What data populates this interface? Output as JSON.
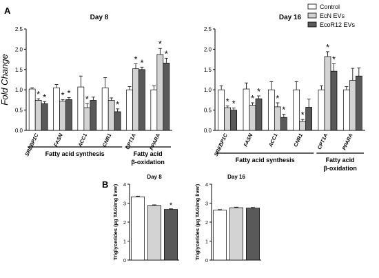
{
  "panel_labels": [
    "A",
    "B"
  ],
  "legend": {
    "entries": [
      {
        "name": "Control",
        "color": "#ffffff"
      },
      {
        "name": "EcN EVs",
        "color": "#d3d3d3"
      },
      {
        "name": "EcoR12 EVs",
        "color": "#595959"
      }
    ]
  },
  "chart_data": [
    {
      "type": "bar",
      "panel": "A",
      "title": "Day 8",
      "ylabel": "Fold Change",
      "ylim": [
        0,
        2.5
      ],
      "yticks": [
        "0.0",
        "0.5",
        "1.0",
        "1.5",
        "2.0",
        "2.5"
      ],
      "categories": [
        "SREBP1C",
        "FASN",
        "ACC1",
        "CNR1",
        "CPT1A",
        "PPARA"
      ],
      "series": [
        {
          "name": "Control",
          "values": [
            1.02,
            1.05,
            1.07,
            1.05,
            1.0,
            1.0
          ],
          "errors": [
            0.03,
            0.08,
            0.27,
            0.25,
            0.08,
            0.1
          ]
        },
        {
          "name": "EcN EVs",
          "values": [
            0.74,
            0.72,
            0.56,
            0.74,
            1.52,
            1.87
          ],
          "errors": [
            0.04,
            0.04,
            0.1,
            0.06,
            0.12,
            0.15
          ]
        },
        {
          "name": "EcoR12 EVs",
          "values": [
            0.66,
            0.76,
            0.74,
            0.46,
            1.5,
            1.66
          ],
          "errors": [
            0.05,
            0.05,
            0.08,
            0.07,
            0.06,
            0.12
          ]
        }
      ],
      "significance": [
        {
          "category": 0,
          "series": 1
        },
        {
          "category": 0,
          "series": 2
        },
        {
          "category": 1,
          "series": 1
        },
        {
          "category": 1,
          "series": 2
        },
        {
          "category": 2,
          "series": 1
        },
        {
          "category": 3,
          "series": 2
        },
        {
          "category": 4,
          "series": 1
        },
        {
          "category": 4,
          "series": 2
        },
        {
          "category": 5,
          "series": 1
        },
        {
          "category": 5,
          "series": 2
        }
      ],
      "significance_mark": "*",
      "groups": [
        {
          "label": "Fatty acid synthesis",
          "from": 0,
          "to": 3
        },
        {
          "label": "Fatty acid\nβ-oxidation",
          "from": 4,
          "to": 5
        }
      ]
    },
    {
      "type": "bar",
      "panel": "A",
      "title": "Day 16",
      "ylabel": "",
      "ylim": [
        0,
        2.5
      ],
      "yticks": [
        "0.0",
        "0.5",
        "1.0",
        "1.5",
        "2.0",
        "2.5"
      ],
      "categories": [
        "SREBP1C",
        "FASN",
        "ACC1",
        "CNR1",
        "CPT1A",
        "PPARA"
      ],
      "series": [
        {
          "name": "Control",
          "values": [
            1.0,
            1.02,
            1.0,
            1.0,
            1.0,
            1.0
          ],
          "errors": [
            0.1,
            0.15,
            0.2,
            0.2,
            0.1,
            0.08
          ]
        },
        {
          "name": "EcN EVs",
          "values": [
            0.56,
            0.62,
            0.58,
            0.22,
            1.82,
            1.23
          ],
          "errors": [
            0.04,
            0.06,
            0.1,
            0.05,
            0.12,
            0.3
          ]
        },
        {
          "name": "EcoR12 EVs",
          "values": [
            0.5,
            0.78,
            0.32,
            0.57,
            1.46,
            1.34
          ],
          "errors": [
            0.05,
            0.07,
            0.08,
            0.2,
            0.18,
            0.2
          ]
        }
      ],
      "significance": [
        {
          "category": 0,
          "series": 1
        },
        {
          "category": 0,
          "series": 2
        },
        {
          "category": 1,
          "series": 1
        },
        {
          "category": 1,
          "series": 2
        },
        {
          "category": 2,
          "series": 1
        },
        {
          "category": 2,
          "series": 2
        },
        {
          "category": 3,
          "series": 1
        },
        {
          "category": 4,
          "series": 1
        },
        {
          "category": 4,
          "series": 2
        }
      ],
      "significance_mark": "*",
      "groups": [
        {
          "label": "Fatty acid synthesis",
          "from": 0,
          "to": 3
        },
        {
          "label": "Fatty acid\nβ-oxidation",
          "from": 4,
          "to": 5
        }
      ]
    },
    {
      "type": "bar",
      "panel": "B",
      "title": "Day 8",
      "ylabel": "Triglycerides (µg TAG/mg liver)",
      "ylim": [
        0,
        4
      ],
      "yticks": [
        "0",
        "1",
        "2",
        "3",
        "4"
      ],
      "categories": [
        "Control",
        "EcN EVs",
        "EcoR12 EVs"
      ],
      "values": [
        3.33,
        2.88,
        2.67
      ],
      "errors": [
        0.04,
        0.03,
        0.03
      ],
      "significance": [
        2
      ],
      "significance_mark": "*"
    },
    {
      "type": "bar",
      "panel": "B",
      "title": "Day 16",
      "ylabel": "Triglycerides (µg TAG/mg liver)",
      "ylim": [
        0,
        4
      ],
      "yticks": [
        "0",
        "1",
        "2",
        "3",
        "4"
      ],
      "categories": [
        "Control",
        "EcN EVs",
        "EcoR12 EVs"
      ],
      "values": [
        2.63,
        2.76,
        2.74
      ],
      "errors": [
        0.03,
        0.03,
        0.03
      ],
      "significance": [],
      "significance_mark": "*"
    }
  ]
}
